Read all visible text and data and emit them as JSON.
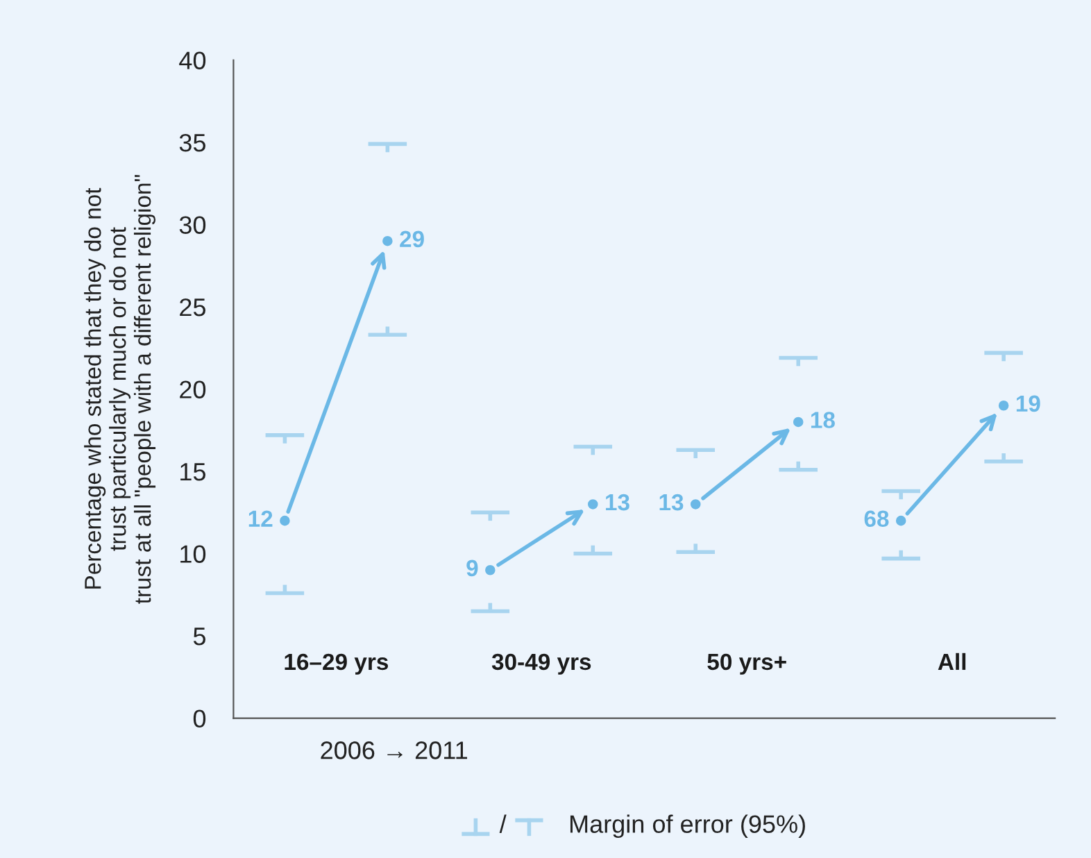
{
  "chart_data": {
    "type": "scatter",
    "ylabel": "Percentage who stated that they do not\ntrust particularly much or do not\ntrust at all \"people with a different religion\"",
    "categories": [
      null,
      null,
      null,
      null,
      null,
      null,
      null,
      null
    ],
    "series": [
      {
        "color": "#6bb8e6",
        "values": [
          12,
          null,
          9,
          null,
          13,
          null,
          12,
          null
        ],
        "value_labels": [
          "12",
          null,
          "9",
          null,
          "13",
          null,
          null,
          null
        ],
        "errors": [
          [
            7.6,
            17.2
          ],
          null,
          [
            6.5,
            12.5
          ],
          null,
          [
            10.1,
            16.3
          ],
          null,
          [
            9.7,
            13.8
          ],
          null
        ]
      },
      {
        "color": "#6bb8e6",
        "values": [
          null,
          29,
          null,
          13,
          null,
          18,
          null,
          19
        ],
        "value_labels": [
          null,
          "29",
          null,
          "13",
          null,
          "18",
          null,
          "19"
        ],
        "errors": [
          null,
          [
            23.3,
            34.9
          ],
          null,
          [
            10.0,
            16.5
          ],
          null,
          [
            15.1,
            21.9
          ],
          null,
          [
            15.6,
            22.2
          ]
        ]
      }
    ],
    "marker": "circle",
    "ylim": [
      0,
      40
    ],
    "yticks": [
      0,
      5,
      10,
      15,
      20,
      25,
      30,
      35,
      40
    ],
    "tick_labels": "y",
    "grid": false,
    "legend": false,
    "annotations": [
      "16–29 yrs",
      "30-49 yrs",
      "50 yrs+",
      "All",
      "2006 → 2011",
      "/",
      "Margin of error (95%)",
      "68"
    ]
  }
}
